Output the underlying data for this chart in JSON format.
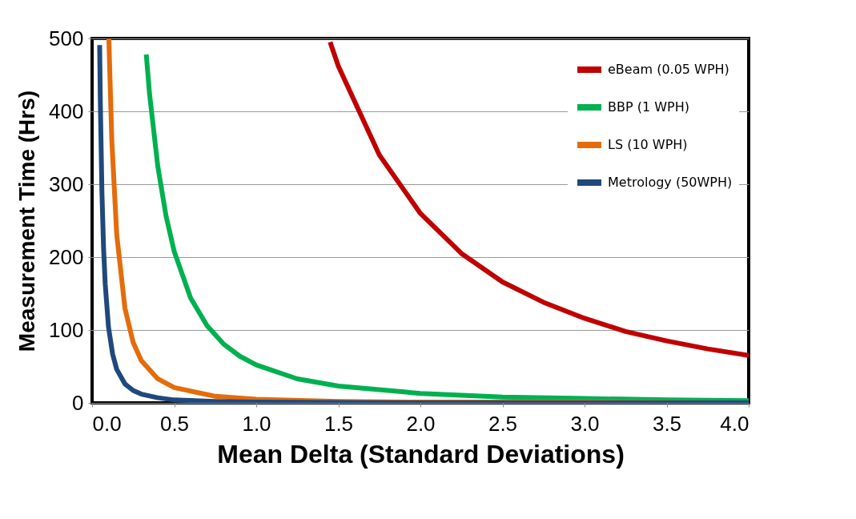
{
  "chart_data": {
    "type": "line",
    "xlabel": "Mean Delta (Standard Deviations)",
    "ylabel": "Measurement Time (Hrs)",
    "xlim": [
      0,
      4
    ],
    "xticks": [
      {
        "value": 0,
        "label": "0.0"
      },
      {
        "value": 0.5,
        "label": "0.5"
      },
      {
        "value": 1,
        "label": "1.0"
      },
      {
        "value": 1.5,
        "label": "1.5"
      },
      {
        "value": 2,
        "label": "2.0"
      },
      {
        "value": 2.5,
        "label": "2.5"
      },
      {
        "value": 3,
        "label": "3.0"
      },
      {
        "value": 3.5,
        "label": "3.5"
      },
      {
        "value": 4,
        "label": "4.0"
      }
    ],
    "ylim": [
      0,
      500
    ],
    "yticks": [
      0,
      100,
      200,
      300,
      400,
      500
    ],
    "grid": "y",
    "legend": "top right",
    "marker": "none",
    "line_style": "solid",
    "series": [
      {
        "name": "eBeam (0.05 WPH)",
        "color": "#c00000",
        "x": [
          1.45,
          1.5,
          1.75,
          2,
          2.25,
          2.5,
          2.75,
          3,
          3.25,
          3.5,
          3.75,
          4
        ],
        "values": [
          495,
          462,
          340,
          260,
          205,
          166,
          138,
          116,
          98,
          85,
          74,
          65
        ]
      },
      {
        "name": "BBP (1 WPH)",
        "color": "#00b050",
        "x": [
          0.33,
          0.35,
          0.4,
          0.45,
          0.5,
          0.6,
          0.7,
          0.8,
          0.9,
          1,
          1.25,
          1.5,
          2,
          2.5,
          3,
          3.5,
          4
        ],
        "values": [
          478,
          424,
          325,
          257,
          208,
          144,
          106,
          81,
          64,
          52,
          33,
          23,
          13,
          8,
          6,
          4,
          3
        ]
      },
      {
        "name": "LS (10 WPH)",
        "color": "#e46c0a",
        "x": [
          0.102,
          0.12,
          0.15,
          0.2,
          0.25,
          0.3,
          0.4,
          0.5,
          0.75,
          1,
          1.5,
          2,
          3,
          4
        ],
        "values": [
          500,
          361,
          231,
          130,
          83,
          58,
          33,
          21,
          9,
          5,
          2,
          1,
          1,
          0
        ]
      },
      {
        "name": "Metrology (50WPH)",
        "color": "#1f497d",
        "x": [
          0.046,
          0.05,
          0.06,
          0.07,
          0.08,
          0.1,
          0.125,
          0.15,
          0.2,
          0.25,
          0.3,
          0.4,
          0.5,
          0.75,
          1,
          2,
          4
        ],
        "values": [
          491,
          416,
          289,
          212,
          163,
          104,
          67,
          46,
          26,
          17,
          12,
          7,
          4,
          2,
          1,
          0,
          0
        ]
      }
    ]
  }
}
